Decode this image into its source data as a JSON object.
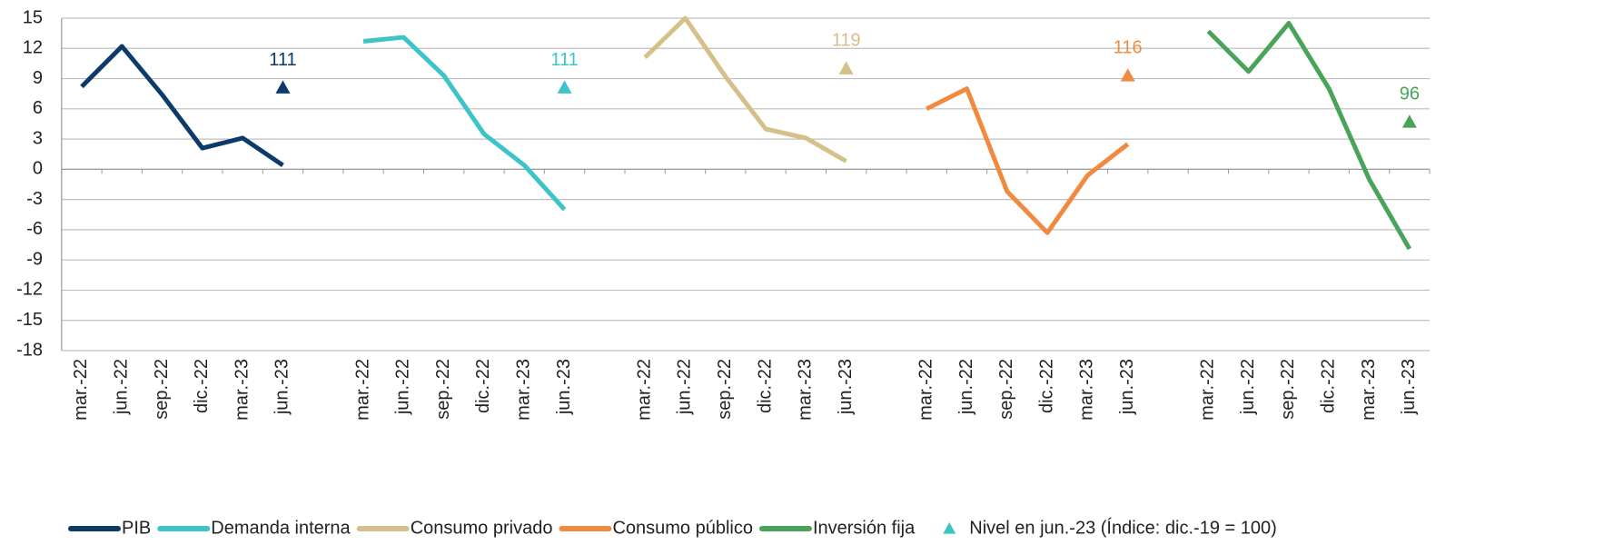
{
  "chart_data": {
    "type": "line",
    "categories": [
      "mar.-22",
      "jun.-22",
      "sep.-22",
      "dic.-22",
      "mar.-23",
      "jun.-23",
      null,
      "mar.-22",
      "jun.-22",
      "sep.-22",
      "dic.-22",
      "mar.-23",
      "jun.-23",
      null,
      "mar.-22",
      "jun.-22",
      "sep.-22",
      "dic.-22",
      "mar.-23",
      "jun.-23",
      null,
      "mar.-22",
      "jun.-22",
      "sep.-22",
      "dic.-22",
      "mar.-23",
      "jun.-23",
      null,
      "mar.-22",
      "jun.-22",
      "sep.-22",
      "dic.-22",
      "mar.-23",
      "jun.-23"
    ],
    "series": [
      {
        "name": "PIB",
        "color": "#0b3a6b",
        "values": [
          8.2,
          12.2,
          7.4,
          2.1,
          3.1,
          0.4,
          null,
          null,
          null,
          null,
          null,
          null,
          null,
          null,
          null,
          null,
          null,
          null,
          null,
          null,
          null,
          null,
          null,
          null,
          null,
          null,
          null,
          null,
          null,
          null,
          null,
          null,
          null,
          null
        ]
      },
      {
        "name": "Demanda interna",
        "color": "#3cc4c8",
        "values": [
          null,
          null,
          null,
          null,
          null,
          null,
          null,
          12.7,
          13.1,
          9.3,
          3.5,
          0.4,
          -4.0,
          null,
          null,
          null,
          null,
          null,
          null,
          null,
          null,
          null,
          null,
          null,
          null,
          null,
          null,
          null,
          null,
          null,
          null,
          null,
          null,
          null
        ]
      },
      {
        "name": "Consumo privado",
        "color": "#d6c08a",
        "values": [
          null,
          null,
          null,
          null,
          null,
          null,
          null,
          null,
          null,
          null,
          null,
          null,
          null,
          null,
          11.1,
          15,
          9.2,
          4.0,
          3.1,
          0.8,
          null,
          null,
          null,
          null,
          null,
          null,
          null,
          null,
          null,
          null,
          null,
          null,
          null,
          null
        ]
      },
      {
        "name": "Consumo público",
        "color": "#f08a3e",
        "values": [
          null,
          null,
          null,
          null,
          null,
          null,
          null,
          null,
          null,
          null,
          null,
          null,
          null,
          null,
          null,
          null,
          null,
          null,
          null,
          null,
          null,
          6.0,
          8.0,
          -2.2,
          -6.3,
          -0.6,
          2.5,
          null,
          null,
          null,
          null,
          null,
          null,
          null
        ]
      },
      {
        "name": "Inversión fija",
        "color": "#4aa35a",
        "values": [
          null,
          null,
          null,
          null,
          null,
          null,
          null,
          null,
          null,
          null,
          null,
          null,
          null,
          null,
          null,
          null,
          null,
          null,
          null,
          null,
          null,
          null,
          null,
          null,
          null,
          null,
          null,
          null,
          13.7,
          9.7,
          14.5,
          8.0,
          -1.0,
          -7.9
        ]
      },
      {
        "name": "Nivel en jun.-23 (Índice: dic.-19 = 100)",
        "marker": "triangle",
        "color": "#3cc4c8",
        "colors": [
          "#0b3a6b",
          "#3cc4c8",
          "#d6c08a",
          "#f08a3e",
          "#4aa35a"
        ],
        "values": [
          null,
          null,
          null,
          null,
          null,
          8.1,
          null,
          null,
          null,
          null,
          null,
          null,
          8.1,
          null,
          null,
          null,
          null,
          null,
          null,
          10.0,
          null,
          null,
          null,
          null,
          null,
          null,
          9.3,
          null,
          null,
          null,
          null,
          null,
          null,
          4.7
        ]
      }
    ],
    "annotations": [
      "111",
      "111",
      "119",
      "116",
      "96"
    ],
    "ylim": [
      -18,
      15
    ],
    "yticks": [
      -18,
      -15,
      -12,
      -9,
      -6,
      -3,
      0,
      3,
      6,
      9,
      12,
      15
    ],
    "grid": true
  }
}
